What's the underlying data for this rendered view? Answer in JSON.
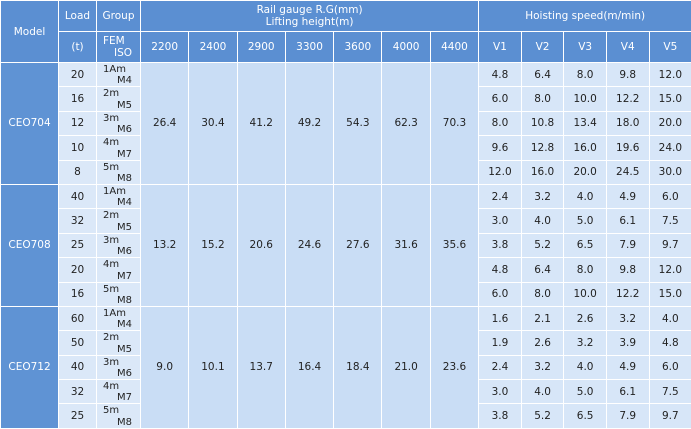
{
  "header": {
    "model": "Model",
    "load": "Load",
    "group": "Group",
    "rail_gauge": "Rail gauge R.G(mm)",
    "lifting_height": "Lifting height(m)",
    "hoisting_speed": "Hoisting speed(m/min)",
    "load_unit": "(t)",
    "fem": "FEM",
    "iso": "ISO",
    "heights": [
      "2200",
      "2400",
      "2900",
      "3300",
      "3600",
      "4000",
      "4400"
    ],
    "speeds": [
      "V1",
      "V2",
      "V3",
      "V4",
      "V5"
    ]
  },
  "models": [
    {
      "name": "CEO704",
      "heights": [
        "26.4",
        "30.4",
        "41.2",
        "49.2",
        "54.3",
        "62.3",
        "70.3"
      ],
      "rows": [
        {
          "load": "20",
          "fem": "1Am",
          "iso": "M4",
          "speeds": [
            "4.8",
            "6.4",
            "8.0",
            "9.8",
            "12.0"
          ]
        },
        {
          "load": "16",
          "fem": "2m",
          "iso": "M5",
          "speeds": [
            "6.0",
            "8.0",
            "10.0",
            "12.2",
            "15.0"
          ]
        },
        {
          "load": "12",
          "fem": "3m",
          "iso": "M6",
          "speeds": [
            "8.0",
            "10.8",
            "13.4",
            "18.0",
            "20.0"
          ]
        },
        {
          "load": "10",
          "fem": "4m",
          "iso": "M7",
          "speeds": [
            "9.6",
            "12.8",
            "16.0",
            "19.6",
            "24.0"
          ]
        },
        {
          "load": "8",
          "fem": "5m",
          "iso": "M8",
          "speeds": [
            "12.0",
            "16.0",
            "20.0",
            "24.5",
            "30.0"
          ]
        }
      ]
    },
    {
      "name": "CEO708",
      "heights": [
        "13.2",
        "15.2",
        "20.6",
        "24.6",
        "27.6",
        "31.6",
        "35.6"
      ],
      "rows": [
        {
          "load": "40",
          "fem": "1Am",
          "iso": "M4",
          "speeds": [
            "2.4",
            "3.2",
            "4.0",
            "4.9",
            "6.0"
          ]
        },
        {
          "load": "32",
          "fem": "2m",
          "iso": "M5",
          "speeds": [
            "3.0",
            "4.0",
            "5.0",
            "6.1",
            "7.5"
          ]
        },
        {
          "load": "25",
          "fem": "3m",
          "iso": "M6",
          "speeds": [
            "3.8",
            "5.2",
            "6.5",
            "7.9",
            "9.7"
          ]
        },
        {
          "load": "20",
          "fem": "4m",
          "iso": "M7",
          "speeds": [
            "4.8",
            "6.4",
            "8.0",
            "9.8",
            "12.0"
          ]
        },
        {
          "load": "16",
          "fem": "5m",
          "iso": "M8",
          "speeds": [
            "6.0",
            "8.0",
            "10.0",
            "12.2",
            "15.0"
          ]
        }
      ]
    },
    {
      "name": "CEO712",
      "heights": [
        "9.0",
        "10.1",
        "13.7",
        "16.4",
        "18.4",
        "21.0",
        "23.6"
      ],
      "rows": [
        {
          "load": "60",
          "fem": "1Am",
          "iso": "M4",
          "speeds": [
            "1.6",
            "2.1",
            "2.6",
            "3.2",
            "4.0"
          ]
        },
        {
          "load": "50",
          "fem": "2m",
          "iso": "M5",
          "speeds": [
            "1.9",
            "2.6",
            "3.2",
            "3.9",
            "4.8"
          ]
        },
        {
          "load": "40",
          "fem": "3m",
          "iso": "M6",
          "speeds": [
            "2.4",
            "3.2",
            "4.0",
            "4.9",
            "6.0"
          ]
        },
        {
          "load": "32",
          "fem": "4m",
          "iso": "M7",
          "speeds": [
            "3.0",
            "4.0",
            "5.0",
            "6.1",
            "7.5"
          ]
        },
        {
          "load": "25",
          "fem": "5m",
          "iso": "M8",
          "speeds": [
            "3.8",
            "5.2",
            "6.5",
            "7.9",
            "9.7"
          ]
        }
      ]
    }
  ]
}
